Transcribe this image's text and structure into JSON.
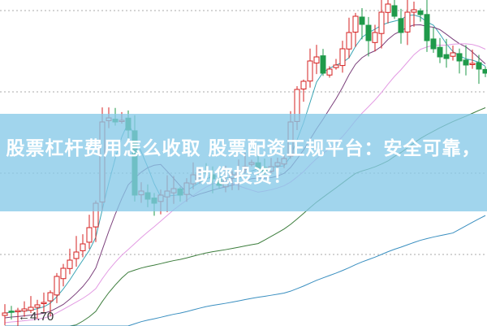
{
  "headline": "股票杠杆费用怎么收取 股票配资正规平台：安全可靠，助您投资！",
  "price_marker": {
    "label": "4.70",
    "arrow": "←"
  },
  "colors": {
    "up": "#d62020",
    "down": "#1f9a4a",
    "ma5": "#3aa5b5",
    "ma10": "#7b3f7b",
    "ma20": "#e39be3",
    "ma60": "#3c7d3c",
    "ma120": "#3a8fc0",
    "banner": "#87c9e8"
  }
}
